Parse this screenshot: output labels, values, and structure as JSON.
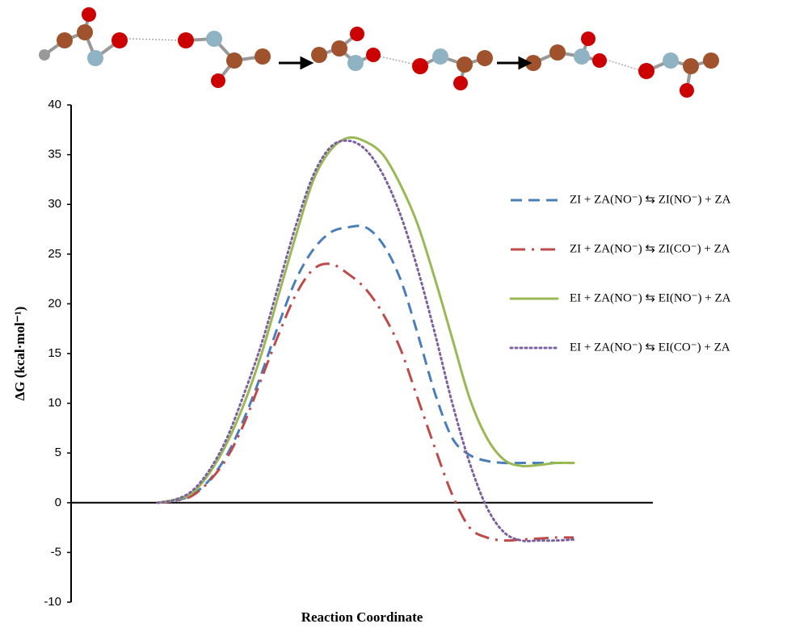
{
  "chart_data": {
    "type": "line",
    "x_label": "Reaction Coordinate",
    "y_label": "ΔG (kcal·mol⁻¹)",
    "categories": [
      null,
      null,
      null,
      null,
      null,
      null,
      null,
      null,
      null,
      null,
      null,
      null,
      null,
      null,
      null,
      null,
      null,
      null,
      null,
      null,
      null,
      null,
      null,
      null,
      null
    ],
    "ylim": [
      -10,
      40
    ],
    "yticks": [
      -10,
      -5,
      0,
      5,
      10,
      15,
      20,
      25,
      30,
      35,
      40
    ],
    "grid": false,
    "legend": "right",
    "series": [
      {
        "name": "ZI + ZA(NO⁻) ⇆ ZI(NO⁻) + ZA",
        "color": "#4a7ebb",
        "style": "dashed",
        "values": [
          0,
          0.2,
          0.8,
          2.3,
          4.8,
          8.5,
          13,
          18,
          22.5,
          25.5,
          27.2,
          27.7,
          27.7,
          26,
          22.5,
          17,
          11,
          6.5,
          4.8,
          4.2,
          4,
          4,
          4,
          4,
          4
        ]
      },
      {
        "name": "ZI + ZA(NO⁻) ⇆ ZI(CO⁻) + ZA",
        "color": "#be4b48",
        "style": "dashdot",
        "values": [
          0,
          0.2,
          0.7,
          2.2,
          4.5,
          8,
          12.5,
          17,
          21,
          23.5,
          24,
          23,
          21.5,
          19,
          15.5,
          10.5,
          5.5,
          0.8,
          -2.5,
          -3.5,
          -3.8,
          -3.7,
          -3.6,
          -3.5,
          -3.5
        ]
      },
      {
        "name": "EI + ZA(NO⁻) ⇆ EI(NO⁻) + ZA",
        "color": "#98b954",
        "style": "solid",
        "values": [
          0,
          0.3,
          1,
          3,
          6,
          10,
          15,
          21,
          27,
          32.5,
          35.5,
          36.7,
          36.3,
          35,
          32,
          28,
          22.5,
          16.5,
          10.5,
          6.5,
          4.3,
          3.7,
          3.8,
          4,
          4
        ]
      },
      {
        "name": "EI + ZA(NO⁻) ⇆ EI(CO⁻) + ZA",
        "color": "#7d60a0",
        "style": "dotted",
        "values": [
          0,
          0.3,
          1.2,
          3.3,
          6.5,
          11,
          16,
          22,
          28,
          33,
          35.8,
          36.4,
          35.5,
          33,
          29,
          23.5,
          17,
          10,
          4,
          -0.5,
          -3,
          -3.8,
          -3.8,
          -3.8,
          -3.7
        ]
      }
    ]
  }
}
